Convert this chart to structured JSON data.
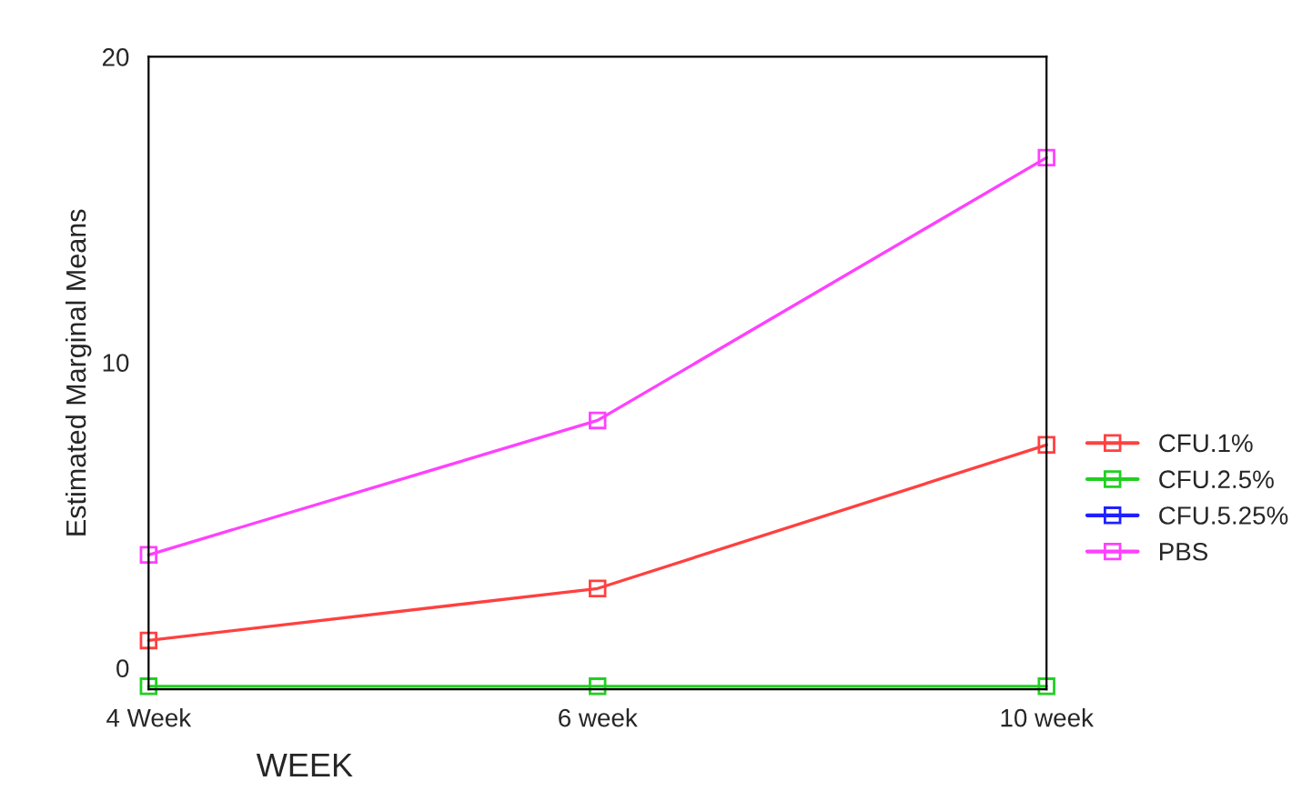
{
  "chart_data": {
    "type": "line",
    "xlabel": "WEEK",
    "ylabel": "Estimated Marginal Means",
    "categories": [
      "4 Week",
      "6 week",
      "10 week"
    ],
    "series": [
      {
        "name": "CFU.1%",
        "color": "#ff4040",
        "values": [
          0.9,
          2.6,
          7.3
        ]
      },
      {
        "name": "CFU.2.5%",
        "color": "#20d020",
        "values": [
          -0.6,
          -0.6,
          -0.6
        ]
      },
      {
        "name": "CFU.5.25%",
        "color": "#2020ff",
        "values": [
          null,
          null,
          null
        ]
      },
      {
        "name": "PBS",
        "color": "#ff40ff",
        "values": [
          3.7,
          8.1,
          16.7
        ]
      }
    ],
    "ylim": [
      -0.7,
      20
    ],
    "yticks": [
      0,
      10,
      20
    ],
    "marker": "square",
    "line_style": "solid",
    "grid": false,
    "legend": "right"
  }
}
